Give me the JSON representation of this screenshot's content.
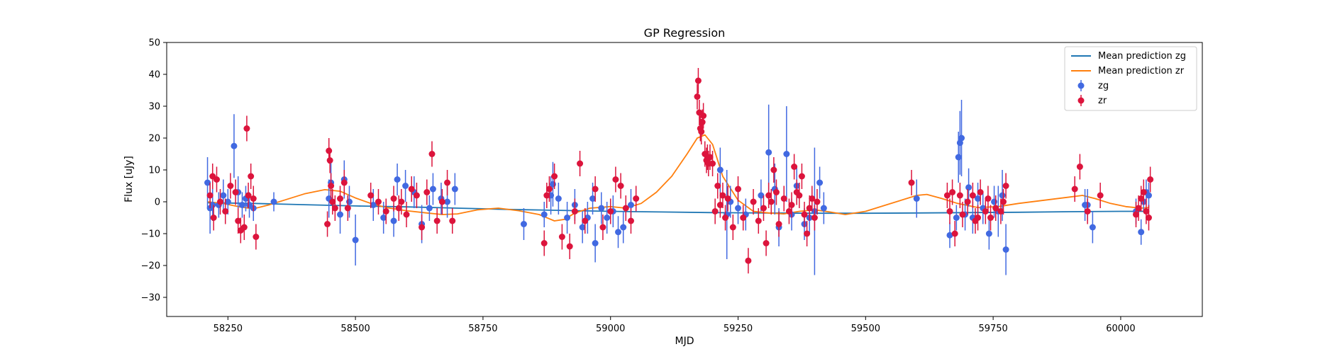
{
  "chart_data": {
    "type": "scatter",
    "title": "GP Regression",
    "xlabel": "MJD",
    "ylabel": "Flux [uJy]",
    "xlim": [
      58130,
      60160
    ],
    "ylim": [
      -36,
      50
    ],
    "xticks": [
      58250,
      58500,
      58750,
      59000,
      59250,
      59500,
      59750,
      60000
    ],
    "yticks": [
      -30,
      -20,
      -10,
      0,
      10,
      20,
      30,
      40,
      50
    ],
    "xtick_labels": [
      "58250",
      "58500",
      "58750",
      "59000",
      "59250",
      "59500",
      "59750",
      "60000"
    ],
    "ytick_labels": [
      "−30",
      "−20",
      "−10",
      "0",
      "10",
      "20",
      "30",
      "40",
      "50"
    ],
    "grid": false,
    "legend_position": "top-right",
    "colors": {
      "zg_line": "#1f77b4",
      "zr_line": "#ff7f0e",
      "zg_points": "#4169e1",
      "zr_points": "#dc143c"
    },
    "lines": [
      {
        "name": "Mean prediction zg",
        "x": [
          58210,
          58300,
          58400,
          58500,
          58600,
          58700,
          58800,
          58900,
          59000,
          59100,
          59200,
          59300,
          59400,
          59500,
          59600,
          59700,
          59800,
          59900,
          60000,
          60050
        ],
        "y": [
          -0.3,
          -0.5,
          -0.9,
          -1.3,
          -1.6,
          -2.0,
          -2.4,
          -2.7,
          -3.0,
          -3.2,
          -3.4,
          -3.5,
          -3.6,
          -3.6,
          -3.5,
          -3.4,
          -3.3,
          -3.1,
          -3.0,
          -3.0
        ]
      },
      {
        "name": "Mean prediction zr",
        "x": [
          58210,
          58240,
          58270,
          58300,
          58330,
          58360,
          58400,
          58440,
          58470,
          58500,
          58530,
          58560,
          58600,
          58640,
          58670,
          58700,
          58740,
          58780,
          58820,
          58860,
          58890,
          58910,
          58930,
          58960,
          59000,
          59030,
          59060,
          59090,
          59120,
          59150,
          59170,
          59185,
          59200,
          59220,
          59250,
          59280,
          59310,
          59340,
          59370,
          59400,
          59430,
          59460,
          59500,
          59540,
          59580,
          59600,
          59620,
          59650,
          59680,
          59720,
          59760,
          59800,
          59850,
          59900,
          59925,
          59950,
          59980,
          60010,
          60040,
          60055
        ],
        "y": [
          0,
          -0.5,
          -1.5,
          -2.2,
          -1.0,
          0.5,
          2.5,
          3.8,
          3.3,
          1.2,
          -0.5,
          -1.8,
          -2.8,
          -3.5,
          -4.0,
          -3.8,
          -2.5,
          -2.0,
          -2.8,
          -4.0,
          -6.0,
          -5.5,
          -3.5,
          -2.0,
          -1.5,
          -2.0,
          -0.5,
          3.0,
          8.0,
          15.0,
          20.0,
          21.0,
          18.0,
          8.0,
          0.5,
          -3.0,
          -3.5,
          -3.8,
          -3.0,
          -2.5,
          -3.2,
          -4.0,
          -3.0,
          -1.0,
          1.0,
          2.0,
          2.3,
          1.0,
          -0.5,
          -1.8,
          -1.5,
          -0.5,
          0.5,
          1.5,
          2.0,
          1.0,
          -0.5,
          -1.5,
          -2.0,
          -1.8
        ]
      }
    ],
    "series": [
      {
        "name": "zg",
        "x": [
          58210,
          58215,
          58220,
          58232,
          58241,
          58250,
          58262,
          58270,
          58278,
          58285,
          58292,
          58300,
          58340,
          58448,
          58452,
          58470,
          58478,
          58488,
          58500,
          58535,
          58555,
          58575,
          58582,
          58598,
          58615,
          58630,
          58645,
          58652,
          58668,
          58680,
          58695,
          58830,
          58870,
          58883,
          58887,
          58898,
          58915,
          58930,
          58945,
          58955,
          58965,
          58970,
          58982,
          58993,
          59005,
          59015,
          59025,
          59040,
          59215,
          59228,
          59235,
          59250,
          59265,
          59295,
          59310,
          59322,
          59330,
          59345,
          59355,
          59365,
          59380,
          59390,
          59400,
          59410,
          59418,
          59600,
          59665,
          59678,
          59682,
          59685,
          59688,
          59695,
          59702,
          59710,
          59720,
          59730,
          59742,
          59752,
          59760,
          59768,
          59775,
          59930,
          59935,
          59945,
          60030,
          60040,
          60045,
          60050,
          60055
        ],
        "y": [
          6,
          -2,
          -1,
          -1,
          2,
          0,
          17.5,
          3,
          -1,
          1,
          -1,
          -2,
          0,
          1,
          6,
          -4,
          7,
          0,
          -12,
          -1,
          -5,
          -6,
          7,
          5,
          3,
          -7,
          -2,
          4,
          1,
          0,
          4,
          -7,
          -4,
          2,
          5.5,
          1,
          -5,
          -1,
          -8,
          -5,
          1,
          -13,
          -2,
          -5,
          -3,
          -9.5,
          -8,
          -1,
          10,
          -4,
          0,
          -2,
          -4,
          2,
          15.5,
          4,
          -8,
          15,
          -4,
          5,
          -7,
          -5,
          -3,
          6,
          -2,
          1,
          -10.5,
          -5,
          14,
          18.5,
          20,
          -4,
          4.5,
          -5,
          1,
          -2,
          -10,
          0,
          -3,
          2,
          -15,
          -1,
          -1,
          -8,
          -3,
          -9.5,
          0,
          3,
          2
        ],
        "err": [
          8,
          8,
          5,
          4,
          5,
          4,
          10,
          5,
          4,
          4,
          4,
          4,
          3,
          6,
          7,
          6,
          6,
          5,
          8,
          5,
          5,
          5,
          5,
          5,
          5,
          6,
          4,
          5,
          5,
          5,
          5,
          5,
          4,
          6,
          7,
          5,
          5,
          5,
          5,
          5,
          5,
          6,
          5,
          5,
          5,
          5,
          5,
          5,
          7,
          14,
          5,
          5,
          5,
          5,
          15,
          8,
          6,
          15,
          5,
          6,
          5,
          5,
          20,
          5,
          5,
          6,
          4,
          4,
          8,
          10,
          12,
          5,
          6,
          5,
          5,
          5,
          5,
          5,
          8,
          8,
          8,
          5,
          5,
          5,
          4,
          4,
          3,
          4,
          4
        ]
      },
      {
        "name": "zr",
        "x": [
          58215,
          58220,
          58222,
          58228,
          58235,
          58245,
          58255,
          58265,
          58270,
          58275,
          58282,
          58287,
          58290,
          58295,
          58300,
          58305,
          58445,
          58448,
          58450,
          58452,
          58455,
          58460,
          58470,
          58478,
          58485,
          58530,
          58545,
          58560,
          58575,
          58585,
          58590,
          58600,
          58610,
          58620,
          58630,
          58640,
          58650,
          58660,
          58670,
          58680,
          58690,
          58870,
          58875,
          58880,
          58890,
          58905,
          58920,
          58930,
          58940,
          58950,
          58970,
          58985,
          59000,
          59010,
          59020,
          59030,
          59040,
          59050,
          59170,
          59172,
          59174,
          59176,
          59178,
          59180,
          59182,
          59185,
          59188,
          59190,
          59192,
          59195,
          59200,
          59205,
          59210,
          59215,
          59220,
          59225,
          59230,
          59240,
          59250,
          59260,
          59270,
          59280,
          59290,
          59300,
          59305,
          59310,
          59315,
          59320,
          59325,
          59330,
          59340,
          59350,
          59355,
          59360,
          59365,
          59370,
          59375,
          59380,
          59385,
          59390,
          59395,
          59400,
          59405,
          59590,
          59660,
          59665,
          59670,
          59675,
          59685,
          59690,
          59700,
          59710,
          59715,
          59720,
          59725,
          59735,
          59740,
          59745,
          59755,
          59765,
          59770,
          59775,
          59910,
          59920,
          59935,
          59960,
          60030,
          60035,
          60040,
          60045,
          60050,
          60055,
          60058
        ],
        "y": [
          2,
          8,
          -5,
          7,
          0,
          -3,
          5,
          3,
          -6,
          -9,
          -8,
          23,
          2,
          8,
          1,
          -11,
          -7,
          16,
          13,
          5,
          0,
          -2,
          1,
          6,
          -2,
          2,
          0,
          -3,
          1,
          -2,
          0,
          -4,
          4,
          2,
          -8,
          3,
          15,
          -6,
          0,
          6,
          -6,
          -13,
          2,
          4,
          8,
          -11,
          -14,
          -3,
          12,
          -6,
          4,
          -8,
          -3,
          7,
          5,
          -2,
          -6,
          1,
          33,
          38,
          28,
          23,
          22,
          25,
          27,
          15,
          13,
          14,
          12,
          14,
          12,
          -3,
          5,
          -1,
          2,
          -5,
          1,
          -8,
          4,
          -5,
          -18.5,
          0,
          -6,
          -2,
          -13,
          2,
          0,
          10,
          3,
          -7,
          1,
          -3,
          -1,
          11,
          3,
          2,
          8,
          -4,
          -10,
          -2,
          1,
          -5,
          0,
          6,
          2,
          -3,
          3,
          -10,
          2,
          -4,
          0,
          2,
          -6,
          -5,
          3,
          -3,
          1,
          -5,
          -2,
          -3,
          0,
          5,
          4,
          11,
          -3,
          2,
          -4,
          -2,
          1,
          3,
          -3,
          -5,
          7
        ]
      }
    ],
    "legend": [
      "Mean prediction zg",
      "Mean prediction zr",
      "zg",
      "zr"
    ]
  }
}
